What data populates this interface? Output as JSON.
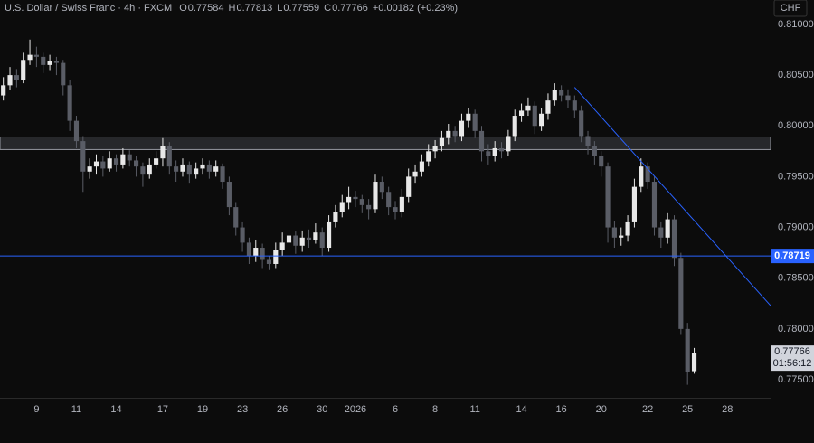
{
  "chart_data": {
    "type": "candlestick",
    "title": "U.S. Dollar / Swiss Franc · 4h · FXCM",
    "legend": [
      {
        "label": "O",
        "value": "0.77584"
      },
      {
        "label": "H",
        "value": "0.77813"
      },
      {
        "label": "L",
        "value": "0.77559"
      },
      {
        "label": "C",
        "value": "0.77766"
      }
    ],
    "change": "+0.00182 (+0.23%)",
    "currency": "CHF",
    "categories": [
      null,
      null,
      null,
      null,
      null,
      "9",
      null,
      null,
      null,
      null,
      null,
      "11",
      null,
      null,
      null,
      null,
      null,
      "14",
      null,
      null,
      null,
      null,
      null,
      null,
      "17",
      null,
      null,
      null,
      null,
      null,
      "19",
      null,
      null,
      null,
      null,
      null,
      "23",
      null,
      null,
      null,
      null,
      null,
      "26",
      null,
      null,
      null,
      null,
      null,
      "30",
      null,
      null,
      null,
      null,
      "2026",
      null,
      null,
      null,
      null,
      null,
      "6",
      null,
      null,
      null,
      null,
      null,
      "8",
      null,
      null,
      null,
      null,
      null,
      "11",
      null,
      null,
      null,
      null,
      null,
      null,
      "14",
      null,
      null,
      null,
      null,
      null,
      "16",
      null,
      null,
      null,
      null,
      null,
      "20",
      null,
      null,
      null,
      null,
      null,
      null,
      "22",
      null,
      null,
      null,
      null,
      null,
      "25",
      null,
      null,
      null,
      null,
      null,
      "28",
      null,
      null,
      null,
      null,
      null,
      null
    ],
    "open": [
      0.803,
      0.804,
      0.805,
      0.8045,
      0.8065,
      0.807,
      0.8068,
      0.806,
      0.8064,
      0.8062,
      0.804,
      0.8005,
      0.7985,
      0.7955,
      0.796,
      0.7965,
      0.7958,
      0.7968,
      0.7962,
      0.7972,
      0.7966,
      0.796,
      0.7952,
      0.7962,
      0.7968,
      0.798,
      0.796,
      0.7955,
      0.7962,
      0.7952,
      0.7958,
      0.7962,
      0.7955,
      0.796,
      0.7945,
      0.792,
      0.79,
      0.7885,
      0.7872,
      0.788,
      0.7868,
      0.7864,
      0.7878,
      0.7885,
      0.7892,
      0.7882,
      0.789,
      0.7888,
      0.7895,
      0.788,
      0.7905,
      0.7915,
      0.7925,
      0.793,
      0.7928,
      0.7922,
      0.7918,
      0.7945,
      0.7935,
      0.792,
      0.7915,
      0.793,
      0.795,
      0.7955,
      0.7965,
      0.7975,
      0.798,
      0.7988,
      0.7995,
      0.799,
      0.8005,
      0.8012,
      0.7995,
      0.7975,
      0.797,
      0.7978,
      0.7975,
      0.799,
      0.801,
      0.8015,
      0.802,
      0.8,
      0.8012,
      0.8025,
      0.8035,
      0.803,
      0.8025,
      0.8015,
      0.799,
      0.798,
      0.797,
      0.796,
      0.79,
      0.789,
      0.7892,
      0.7905,
      0.794,
      0.796,
      0.7945,
      0.79,
      0.789,
      0.7908,
      0.787,
      0.78,
      0.77584,
      null,
      null,
      null,
      null,
      null,
      null,
      null,
      null,
      null,
      null,
      null
    ],
    "high": [
      0.8048,
      0.8058,
      0.8056,
      0.8072,
      0.8085,
      0.8078,
      0.8072,
      0.807,
      0.8068,
      0.8065,
      0.8045,
      0.801,
      0.799,
      0.7968,
      0.7972,
      0.797,
      0.7975,
      0.7972,
      0.7978,
      0.7976,
      0.797,
      0.7964,
      0.7968,
      0.7975,
      0.7988,
      0.7984,
      0.7966,
      0.7968,
      0.7965,
      0.7964,
      0.7968,
      0.7966,
      0.7966,
      0.7963,
      0.795,
      0.7925,
      0.7905,
      0.789,
      0.7888,
      0.7884,
      0.7872,
      0.7885,
      0.7895,
      0.79,
      0.7896,
      0.7897,
      0.7898,
      0.7904,
      0.79,
      0.7912,
      0.7922,
      0.7932,
      0.794,
      0.7936,
      0.7932,
      0.7928,
      0.7952,
      0.795,
      0.794,
      0.7926,
      0.7938,
      0.7958,
      0.7962,
      0.7972,
      0.7982,
      0.7986,
      0.7995,
      0.8002,
      0.8,
      0.8012,
      0.8018,
      0.8016,
      0.8,
      0.7982,
      0.7985,
      0.7984,
      0.7996,
      0.8016,
      0.8022,
      0.8028,
      0.8024,
      0.8018,
      0.8032,
      0.8042,
      0.804,
      0.8036,
      0.803,
      0.802,
      0.7995,
      0.7985,
      0.7975,
      0.7964,
      0.7906,
      0.79,
      0.7912,
      0.7948,
      0.7968,
      0.7964,
      0.795,
      0.7905,
      0.7914,
      0.7912,
      0.7875,
      0.7806,
      0.77813,
      null,
      null,
      null,
      null,
      null,
      null,
      null,
      null,
      null,
      null,
      null
    ],
    "low": [
      0.8025,
      0.8035,
      0.8038,
      0.8042,
      0.806,
      0.8058,
      0.8052,
      0.8055,
      0.805,
      0.803,
      0.7995,
      0.7978,
      0.7935,
      0.7948,
      0.7952,
      0.795,
      0.7955,
      0.7955,
      0.7958,
      0.796,
      0.795,
      0.794,
      0.7948,
      0.7958,
      0.796,
      0.7952,
      0.7945,
      0.795,
      0.7944,
      0.7948,
      0.7952,
      0.7948,
      0.795,
      0.7938,
      0.7912,
      0.7892,
      0.7876,
      0.7864,
      0.7866,
      0.786,
      0.7858,
      0.786,
      0.7872,
      0.788,
      0.7874,
      0.7876,
      0.788,
      0.7884,
      0.7872,
      0.7876,
      0.79,
      0.791,
      0.7918,
      0.792,
      0.7914,
      0.7908,
      0.7914,
      0.7928,
      0.7912,
      0.7908,
      0.791,
      0.7925,
      0.7944,
      0.795,
      0.796,
      0.7968,
      0.7975,
      0.7982,
      0.7984,
      0.7985,
      0.7998,
      0.7988,
      0.7965,
      0.7962,
      0.7965,
      0.7968,
      0.797,
      0.7985,
      0.8004,
      0.801,
      0.7992,
      0.7995,
      0.8006,
      0.802,
      0.8024,
      0.8018,
      0.8008,
      0.7984,
      0.7972,
      0.7962,
      0.795,
      0.7885,
      0.788,
      0.7882,
      0.7886,
      0.79,
      0.7935,
      0.7938,
      0.7892,
      0.788,
      0.7884,
      0.7862,
      0.7795,
      0.7745,
      0.77559,
      null,
      null,
      null,
      null,
      null,
      null,
      null,
      null,
      null,
      null,
      null
    ],
    "close": [
      0.804,
      0.805,
      0.8045,
      0.8065,
      0.807,
      0.8068,
      0.806,
      0.8064,
      0.8062,
      0.804,
      0.8005,
      0.7985,
      0.7955,
      0.796,
      0.7965,
      0.7958,
      0.7968,
      0.7962,
      0.7972,
      0.7966,
      0.796,
      0.7952,
      0.7962,
      0.7968,
      0.798,
      0.796,
      0.7955,
      0.7962,
      0.7952,
      0.7958,
      0.7962,
      0.7955,
      0.796,
      0.7945,
      0.792,
      0.79,
      0.7885,
      0.7872,
      0.788,
      0.7868,
      0.7864,
      0.7878,
      0.7885,
      0.7892,
      0.7882,
      0.789,
      0.7888,
      0.7895,
      0.788,
      0.7905,
      0.7915,
      0.7925,
      0.793,
      0.7928,
      0.7922,
      0.7918,
      0.7945,
      0.7935,
      0.792,
      0.7915,
      0.793,
      0.795,
      0.7955,
      0.7965,
      0.7975,
      0.798,
      0.7988,
      0.7995,
      0.799,
      0.8005,
      0.8012,
      0.7995,
      0.7975,
      0.797,
      0.7978,
      0.7975,
      0.799,
      0.801,
      0.8015,
      0.802,
      0.8,
      0.8012,
      0.8025,
      0.8035,
      0.803,
      0.8025,
      0.8015,
      0.799,
      0.798,
      0.797,
      0.796,
      0.79,
      0.789,
      0.7892,
      0.7905,
      0.794,
      0.796,
      0.7945,
      0.79,
      0.789,
      0.7908,
      0.787,
      0.78,
      0.7758,
      0.77766,
      null,
      null,
      null,
      null,
      null,
      null,
      null,
      null,
      null,
      null,
      null
    ],
    "up_color": "#e8e8e8",
    "down_color": "#5a5d66",
    "ylim": [
      0.77322,
      0.8124
    ],
    "yticks": [
      {
        "value": 0.775,
        "label": "0.77500"
      },
      {
        "value": 0.78,
        "label": "0.78000"
      },
      {
        "value": 0.785,
        "label": "0.78500"
      },
      {
        "value": 0.79,
        "label": "0.79000"
      },
      {
        "value": 0.795,
        "label": "0.79500"
      },
      {
        "value": 0.8,
        "label": "0.80000"
      },
      {
        "value": 0.805,
        "label": "0.80500"
      },
      {
        "value": 0.81,
        "label": "0.81000"
      }
    ],
    "grid": false,
    "zone": [
      0.79767,
      0.79891
    ],
    "level": 0.78719,
    "level_color": "#2962ff",
    "trendline": {
      "start": [
        86,
        0.8038
      ],
      "end": [
        116,
        0.7823
      ],
      "color": "#2962ff"
    },
    "last_price": 0.77766,
    "countdown": "01:56:12"
  }
}
